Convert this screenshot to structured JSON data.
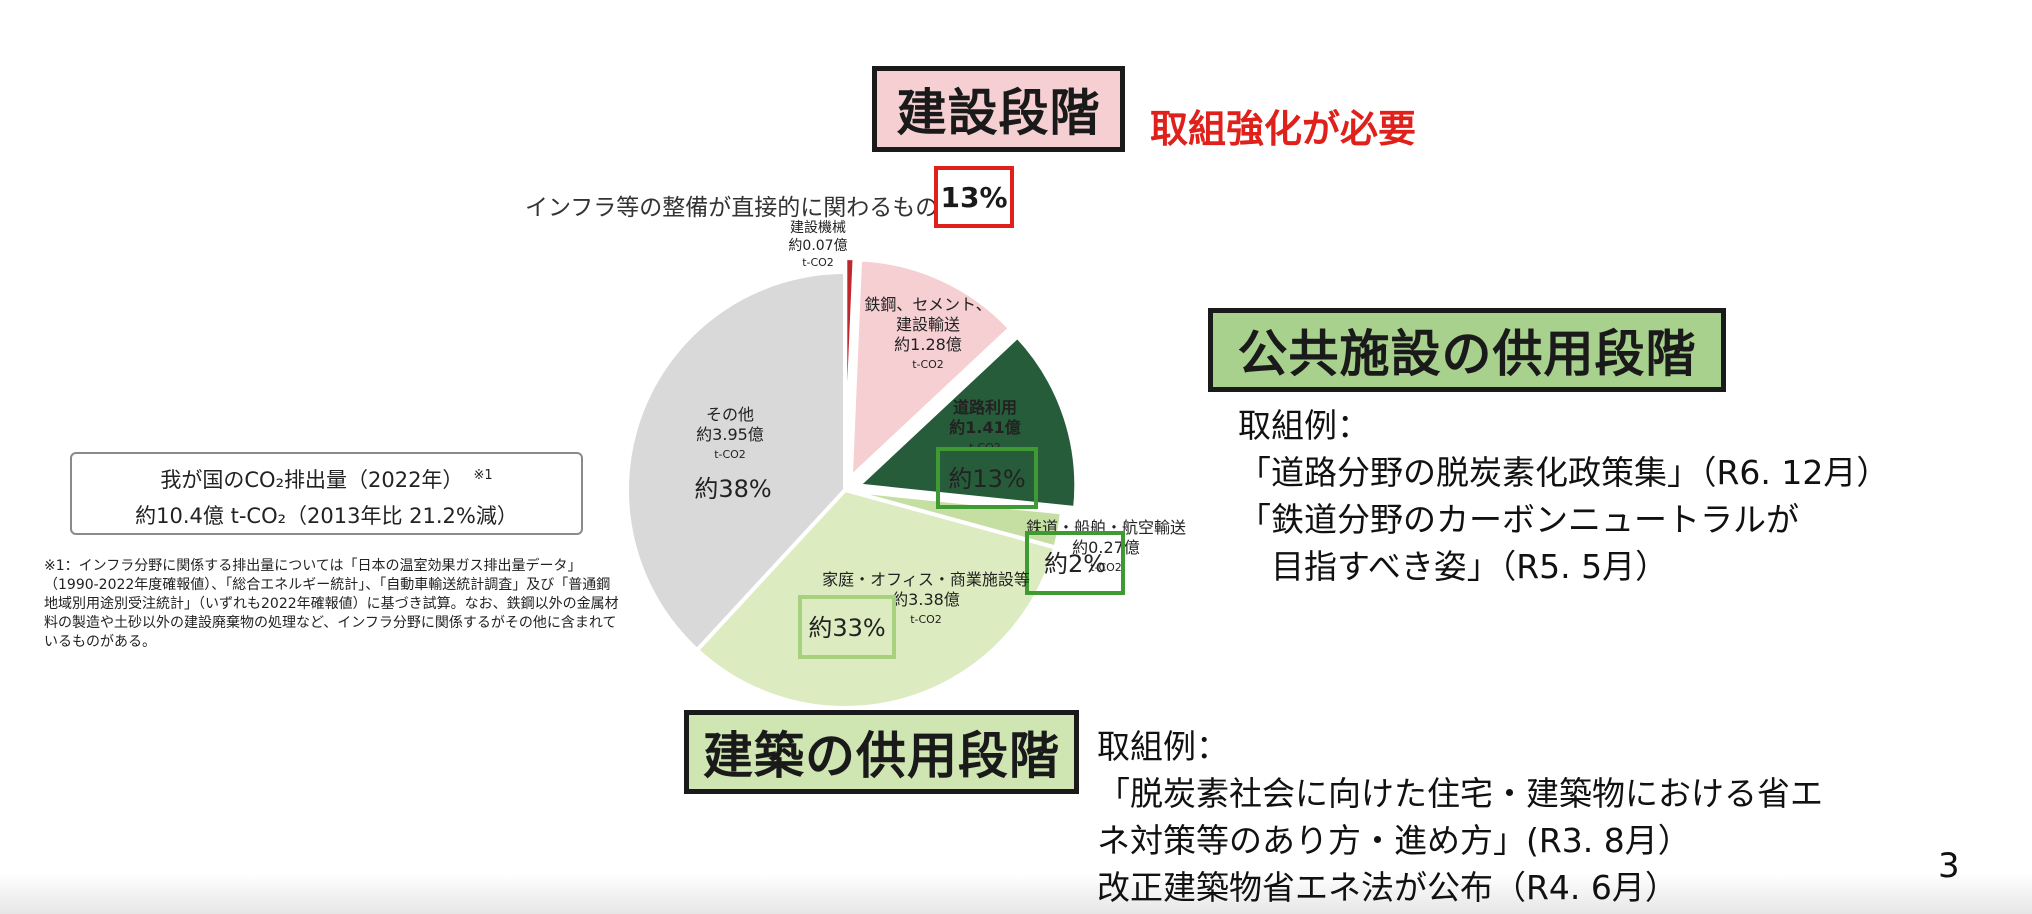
{
  "chart_data": {
    "type": "pie",
    "title": "我が国のCO2排出量（2022年）",
    "slices": [
      {
        "name": "建設機械",
        "value_text": "約0.07億",
        "unit": "t-CO2",
        "value": 0.07,
        "color": "#c0272d",
        "exploded": true
      },
      {
        "name": "鉄鋼、セメント、建設輸送",
        "value_text": "約1.28億",
        "unit": "t-CO2",
        "value": 1.28,
        "color": "#f5cfd2",
        "exploded": true
      },
      {
        "name": "道路利用",
        "value_text": "約1.41億",
        "unit": "t-CO2",
        "value": 1.41,
        "percent_text": "約13%",
        "color": "#265c3a",
        "exploded": true
      },
      {
        "name": "鉄道・船舶・航空輸送",
        "value_text": "約0.27億",
        "unit": "t-CO2",
        "value": 0.27,
        "percent_text": "約2%",
        "color": "#c4dfa1",
        "exploded": false
      },
      {
        "name": "家庭・オフィス・商業施設等",
        "value_text": "約3.38億",
        "unit": "t-CO2",
        "value": 3.38,
        "percent_text": "約33%",
        "color": "#dcebc0",
        "exploded": false
      },
      {
        "name": "その他",
        "value_text": "約3.95億",
        "unit": "t-CO2",
        "value": 3.95,
        "percent_text": "約38%",
        "color": "#d9d9d9",
        "exploded": false
      }
    ]
  },
  "headers": {
    "construction_stage": "建設段階",
    "effort_needed": "取組強化が必要",
    "infra_label": "インフラ等の整備が直接的に関わるもの",
    "infra_percent": "13%",
    "public_stage": "公共施設の供用段階",
    "building_stage": "建築の供用段階"
  },
  "public_examples": {
    "text": "取組例：\n「道路分野の脱炭素化政策集」（R6. 12月）\n「鉄道分野のカーボンニュートラルが\n　目指すべき姿」（R5. 5月）"
  },
  "building_examples": {
    "text": "取組例：\n「脱炭素社会に向けた住宅・建築物における省エ\nネ対策等のあり方・進め方」(R3. 8月）\n改正建築物省エネ法が公布（R4. 6月）"
  },
  "total_box": {
    "line1": "我が国のCO₂排出量（2022年）",
    "note_mark": "※1",
    "line2": "約10.4億 t-CO₂（2013年比 21.2%減）"
  },
  "footnote": "※1：インフラ分野に関係する排出量については「日本の温室効果ガス排出量データ」（1990-2022年度確報値）、「総合エネルギー統計」、「自動車輸送統計調査」及び「普通鋼地域別用途別受注統計」（いずれも2022年確報値）に基づき試算。なお、鉄鋼以外の金属材料の製造や土砂以外の建設廃棄物の処理など、インフラ分野に関係するがその他に含まれているものがある。",
  "page_number": "3"
}
